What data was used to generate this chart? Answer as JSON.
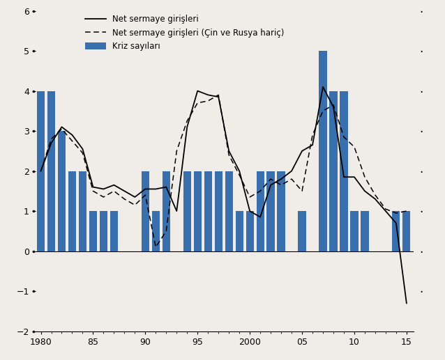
{
  "years": [
    1980,
    1981,
    1982,
    1983,
    1984,
    1985,
    1986,
    1987,
    1988,
    1989,
    1990,
    1991,
    1992,
    1993,
    1994,
    1995,
    1996,
    1997,
    1998,
    1999,
    2000,
    2001,
    2002,
    2003,
    2004,
    2005,
    2006,
    2007,
    2008,
    2009,
    2010,
    2011,
    2012,
    2013,
    2014,
    2015
  ],
  "bar_values": [
    4,
    4,
    3,
    2,
    2,
    1,
    1,
    1,
    0,
    0,
    2,
    1,
    2,
    0,
    2,
    2,
    2,
    2,
    2,
    1,
    1,
    2,
    2,
    2,
    0,
    1,
    0,
    5,
    4,
    4,
    1,
    1,
    0,
    0,
    1,
    1
  ],
  "line1": [
    2.0,
    2.7,
    3.1,
    2.9,
    2.55,
    1.6,
    1.55,
    1.65,
    1.5,
    1.35,
    1.55,
    1.55,
    1.6,
    1.0,
    3.1,
    4.0,
    3.9,
    3.85,
    2.5,
    2.0,
    1.0,
    0.85,
    1.65,
    1.8,
    2.0,
    2.5,
    2.65,
    4.1,
    3.6,
    1.85,
    1.85,
    1.5,
    1.3,
    1.0,
    0.7,
    -1.3
  ],
  "line2": [
    2.0,
    2.8,
    3.05,
    2.75,
    2.45,
    1.5,
    1.35,
    1.5,
    1.3,
    1.15,
    1.4,
    0.1,
    0.5,
    2.5,
    3.25,
    3.7,
    3.75,
    3.9,
    2.4,
    1.9,
    1.35,
    1.5,
    1.8,
    1.65,
    1.8,
    1.5,
    2.9,
    3.5,
    3.65,
    2.85,
    2.6,
    1.85,
    1.4,
    1.05,
    0.95,
    1.0
  ],
  "bar_color": "#3a6fad",
  "line1_color": "black",
  "line2_color": "black",
  "ylim": [
    -2,
    6
  ],
  "xlim": [
    1979.5,
    2015.7
  ],
  "yticks": [
    -2,
    -1,
    0,
    1,
    2,
    3,
    4,
    5,
    6
  ],
  "xticks": [
    1980,
    1985,
    1990,
    1995,
    2000,
    2005,
    2010,
    2015
  ],
  "xtick_labels": [
    "1980",
    "85",
    "90",
    "95",
    "2000",
    "05",
    "10",
    "15"
  ],
  "legend_line1": "Net sermaye girişleri",
  "legend_line2": "Net sermaye girişleri (Çin ve Rusya hariç)",
  "legend_bar": "Kriz sayıları",
  "background_color": "#f0ede8"
}
